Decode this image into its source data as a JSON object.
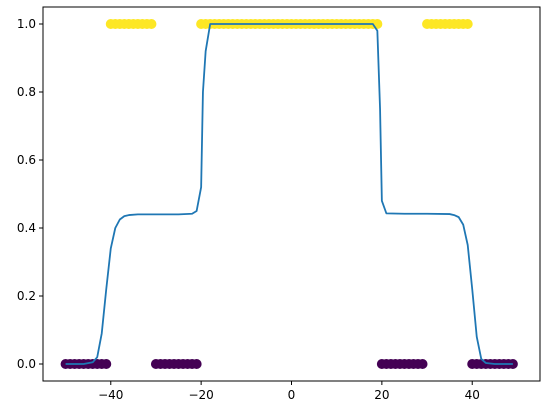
{
  "chart_data": {
    "type": "scatter",
    "xlim": [
      -55,
      55
    ],
    "ylim": [
      -0.05,
      1.05
    ],
    "x_ticks": [
      -40,
      -20,
      0,
      20,
      40
    ],
    "x_tick_labels": [
      "−40",
      "−20",
      "0",
      "20",
      "40"
    ],
    "y_ticks": [
      0.0,
      0.2,
      0.4,
      0.6,
      0.8,
      1.0
    ],
    "y_tick_labels": [
      "0.0",
      "0.2",
      "0.4",
      "0.6",
      "0.8",
      "1.0"
    ],
    "grid": false,
    "legend": "none",
    "scatter": {
      "class_0_color": "#440154",
      "class_1_color": "#fde725",
      "points": [
        {
          "x": -50,
          "y": 0
        },
        {
          "x": -49,
          "y": 0
        },
        {
          "x": -48,
          "y": 0
        },
        {
          "x": -47,
          "y": 0
        },
        {
          "x": -46,
          "y": 0
        },
        {
          "x": -45,
          "y": 0
        },
        {
          "x": -44,
          "y": 0
        },
        {
          "x": -43,
          "y": 0
        },
        {
          "x": -42,
          "y": 0
        },
        {
          "x": -41,
          "y": 0
        },
        {
          "x": -40,
          "y": 1
        },
        {
          "x": -39,
          "y": 1
        },
        {
          "x": -38,
          "y": 1
        },
        {
          "x": -37,
          "y": 1
        },
        {
          "x": -36,
          "y": 1
        },
        {
          "x": -35,
          "y": 1
        },
        {
          "x": -34,
          "y": 1
        },
        {
          "x": -33,
          "y": 1
        },
        {
          "x": -32,
          "y": 1
        },
        {
          "x": -31,
          "y": 1
        },
        {
          "x": -30,
          "y": 0
        },
        {
          "x": -29,
          "y": 0
        },
        {
          "x": -28,
          "y": 0
        },
        {
          "x": -27,
          "y": 0
        },
        {
          "x": -26,
          "y": 0
        },
        {
          "x": -25,
          "y": 0
        },
        {
          "x": -24,
          "y": 0
        },
        {
          "x": -23,
          "y": 0
        },
        {
          "x": -22,
          "y": 0
        },
        {
          "x": -21,
          "y": 0
        },
        {
          "x": -20,
          "y": 1
        },
        {
          "x": -19,
          "y": 1
        },
        {
          "x": -18,
          "y": 1
        },
        {
          "x": -17,
          "y": 1
        },
        {
          "x": -16,
          "y": 1
        },
        {
          "x": -15,
          "y": 1
        },
        {
          "x": -14,
          "y": 1
        },
        {
          "x": -13,
          "y": 1
        },
        {
          "x": -12,
          "y": 1
        },
        {
          "x": -11,
          "y": 1
        },
        {
          "x": -10,
          "y": 1
        },
        {
          "x": -9,
          "y": 1
        },
        {
          "x": -8,
          "y": 1
        },
        {
          "x": -7,
          "y": 1
        },
        {
          "x": -6,
          "y": 1
        },
        {
          "x": -5,
          "y": 1
        },
        {
          "x": -4,
          "y": 1
        },
        {
          "x": -3,
          "y": 1
        },
        {
          "x": -2,
          "y": 1
        },
        {
          "x": -1,
          "y": 1
        },
        {
          "x": 0,
          "y": 1
        },
        {
          "x": 1,
          "y": 1
        },
        {
          "x": 2,
          "y": 1
        },
        {
          "x": 3,
          "y": 1
        },
        {
          "x": 4,
          "y": 1
        },
        {
          "x": 5,
          "y": 1
        },
        {
          "x": 6,
          "y": 1
        },
        {
          "x": 7,
          "y": 1
        },
        {
          "x": 8,
          "y": 1
        },
        {
          "x": 9,
          "y": 1
        },
        {
          "x": 10,
          "y": 1
        },
        {
          "x": 11,
          "y": 1
        },
        {
          "x": 12,
          "y": 1
        },
        {
          "x": 13,
          "y": 1
        },
        {
          "x": 14,
          "y": 1
        },
        {
          "x": 15,
          "y": 1
        },
        {
          "x": 16,
          "y": 1
        },
        {
          "x": 17,
          "y": 1
        },
        {
          "x": 18,
          "y": 1
        },
        {
          "x": 19,
          "y": 1
        },
        {
          "x": 20,
          "y": 0
        },
        {
          "x": 21,
          "y": 0
        },
        {
          "x": 22,
          "y": 0
        },
        {
          "x": 23,
          "y": 0
        },
        {
          "x": 24,
          "y": 0
        },
        {
          "x": 25,
          "y": 0
        },
        {
          "x": 26,
          "y": 0
        },
        {
          "x": 27,
          "y": 0
        },
        {
          "x": 28,
          "y": 0
        },
        {
          "x": 29,
          "y": 0
        },
        {
          "x": 30,
          "y": 1
        },
        {
          "x": 31,
          "y": 1
        },
        {
          "x": 32,
          "y": 1
        },
        {
          "x": 33,
          "y": 1
        },
        {
          "x": 34,
          "y": 1
        },
        {
          "x": 35,
          "y": 1
        },
        {
          "x": 36,
          "y": 1
        },
        {
          "x": 37,
          "y": 1
        },
        {
          "x": 38,
          "y": 1
        },
        {
          "x": 39,
          "y": 1
        },
        {
          "x": 40,
          "y": 0
        },
        {
          "x": 41,
          "y": 0
        },
        {
          "x": 42,
          "y": 0
        },
        {
          "x": 43,
          "y": 0
        },
        {
          "x": 44,
          "y": 0
        },
        {
          "x": 45,
          "y": 0
        },
        {
          "x": 46,
          "y": 0
        },
        {
          "x": 47,
          "y": 0
        },
        {
          "x": 48,
          "y": 0
        },
        {
          "x": 49,
          "y": 0
        }
      ]
    },
    "line": {
      "color": "#1f77b4",
      "points": [
        [
          -50,
          0.0
        ],
        [
          -46,
          0.0
        ],
        [
          -44,
          0.005
        ],
        [
          -43,
          0.02
        ],
        [
          -42,
          0.09
        ],
        [
          -41,
          0.22
        ],
        [
          -40,
          0.34
        ],
        [
          -39,
          0.4
        ],
        [
          -38,
          0.425
        ],
        [
          -37,
          0.435
        ],
        [
          -36,
          0.438
        ],
        [
          -34,
          0.44
        ],
        [
          -30,
          0.44
        ],
        [
          -25,
          0.44
        ],
        [
          -22,
          0.442
        ],
        [
          -21,
          0.45
        ],
        [
          -20,
          0.52
        ],
        [
          -19.6,
          0.8
        ],
        [
          -19,
          0.92
        ],
        [
          -18,
          1.0
        ],
        [
          -10,
          1.0
        ],
        [
          0,
          1.0
        ],
        [
          10,
          1.0
        ],
        [
          18,
          1.0
        ],
        [
          19,
          0.98
        ],
        [
          19.6,
          0.75
        ],
        [
          20,
          0.48
        ],
        [
          21,
          0.443
        ],
        [
          25,
          0.442
        ],
        [
          30,
          0.442
        ],
        [
          35,
          0.441
        ],
        [
          36,
          0.438
        ],
        [
          37,
          0.432
        ],
        [
          38,
          0.41
        ],
        [
          39,
          0.35
        ],
        [
          40,
          0.22
        ],
        [
          41,
          0.08
        ],
        [
          42,
          0.015
        ],
        [
          43,
          0.003
        ],
        [
          45,
          0.0
        ],
        [
          49,
          0.0
        ]
      ]
    }
  }
}
